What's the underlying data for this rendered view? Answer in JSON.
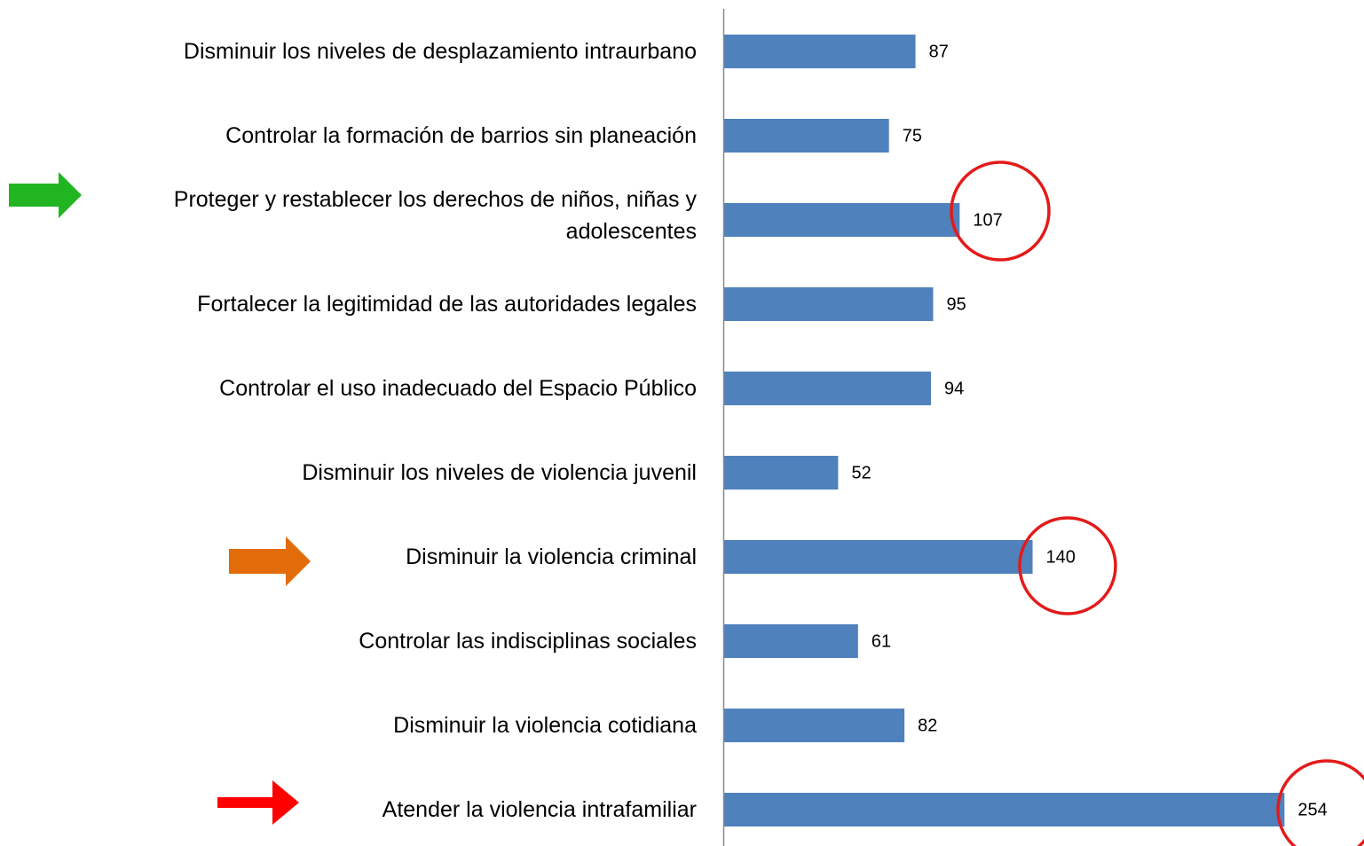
{
  "chart_data": {
    "type": "bar",
    "orientation": "horizontal",
    "categories": [
      "Disminuir los niveles de desplazamiento intraurbano",
      "Controlar la formación de barrios sin planeación",
      "Proteger y restablecer los derechos de niños, niñas y adolescentes",
      "Fortalecer la legitimidad de las autoridades legales",
      "Controlar el uso inadecuado del Espacio Público",
      "Disminuir los niveles de violencia juvenil",
      "Disminuir la violencia criminal",
      "Controlar las indisciplinas sociales",
      "Disminuir la violencia cotidiana",
      "Atender la violencia intrafamiliar"
    ],
    "values": [
      87,
      75,
      107,
      95,
      94,
      52,
      140,
      61,
      82,
      254
    ],
    "color": "#4f81bd",
    "xlim": [
      0,
      290
    ]
  }
}
